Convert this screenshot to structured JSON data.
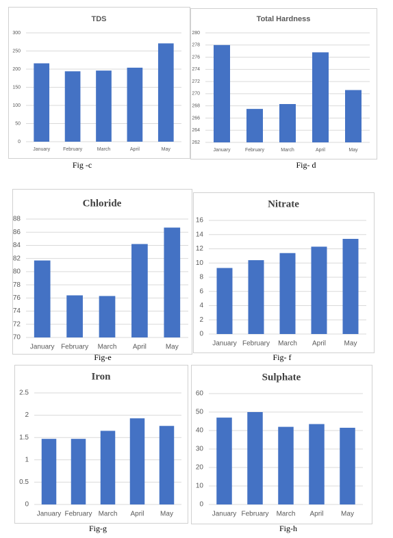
{
  "chart_data": [
    {
      "type": "bar",
      "title": "TDS",
      "caption": "Fig -c",
      "color": "#4472c4",
      "grid": true,
      "categories": [
        "January",
        "February",
        "March",
        "April",
        "May"
      ],
      "values": [
        216,
        194,
        196,
        204,
        271
      ],
      "ylim": [
        0,
        300
      ],
      "yticks": [
        0,
        50,
        100,
        150,
        200,
        250,
        300
      ]
    },
    {
      "type": "bar",
      "title": "Total Hardness",
      "caption": "Fig- d",
      "color": "#4472c4",
      "grid": true,
      "categories": [
        "January",
        "February",
        "March",
        "April",
        "May"
      ],
      "values": [
        278,
        267.5,
        268.3,
        276.8,
        270.6
      ],
      "ylim": [
        262,
        280
      ],
      "yticks": [
        262,
        264,
        266,
        268,
        270,
        272,
        274,
        276,
        278,
        280
      ]
    },
    {
      "type": "bar",
      "title": "Chloride",
      "caption": "Fig-e",
      "color": "#4472c4",
      "grid": true,
      "categories": [
        "January",
        "February",
        "March",
        "April",
        "May"
      ],
      "values": [
        81.7,
        76.4,
        76.3,
        84.2,
        86.7
      ],
      "ylim": [
        70,
        88
      ],
      "yticks": [
        70,
        72,
        74,
        76,
        78,
        80,
        82,
        84,
        86,
        88
      ]
    },
    {
      "type": "bar",
      "title": "Nitrate",
      "caption": "Fig- f",
      "color": "#4472c4",
      "grid": true,
      "categories": [
        "January",
        "February",
        "March",
        "April",
        "May"
      ],
      "values": [
        9.3,
        10.4,
        11.4,
        12.3,
        13.4
      ],
      "ylim": [
        0,
        16
      ],
      "yticks": [
        0,
        2,
        4,
        6,
        8,
        10,
        12,
        14,
        16
      ]
    },
    {
      "type": "bar",
      "title": "Iron",
      "caption": "Fig-g",
      "color": "#4472c4",
      "grid": true,
      "categories": [
        "January",
        "February",
        "March",
        "April",
        "May"
      ],
      "values": [
        1.47,
        1.47,
        1.65,
        1.93,
        1.76
      ],
      "ylim": [
        0,
        2.5
      ],
      "yticks": [
        0,
        0.5,
        1,
        1.5,
        2,
        2.5
      ]
    },
    {
      "type": "bar",
      "title": "Sulphate",
      "caption": "Fig-h",
      "color": "#4472c4",
      "grid": true,
      "categories": [
        "January",
        "February",
        "March",
        "April",
        "May"
      ],
      "values": [
        47,
        50,
        42,
        43.5,
        41.5
      ],
      "ylim": [
        0,
        60
      ],
      "yticks": [
        0,
        10,
        20,
        30,
        40,
        50,
        60
      ]
    }
  ]
}
